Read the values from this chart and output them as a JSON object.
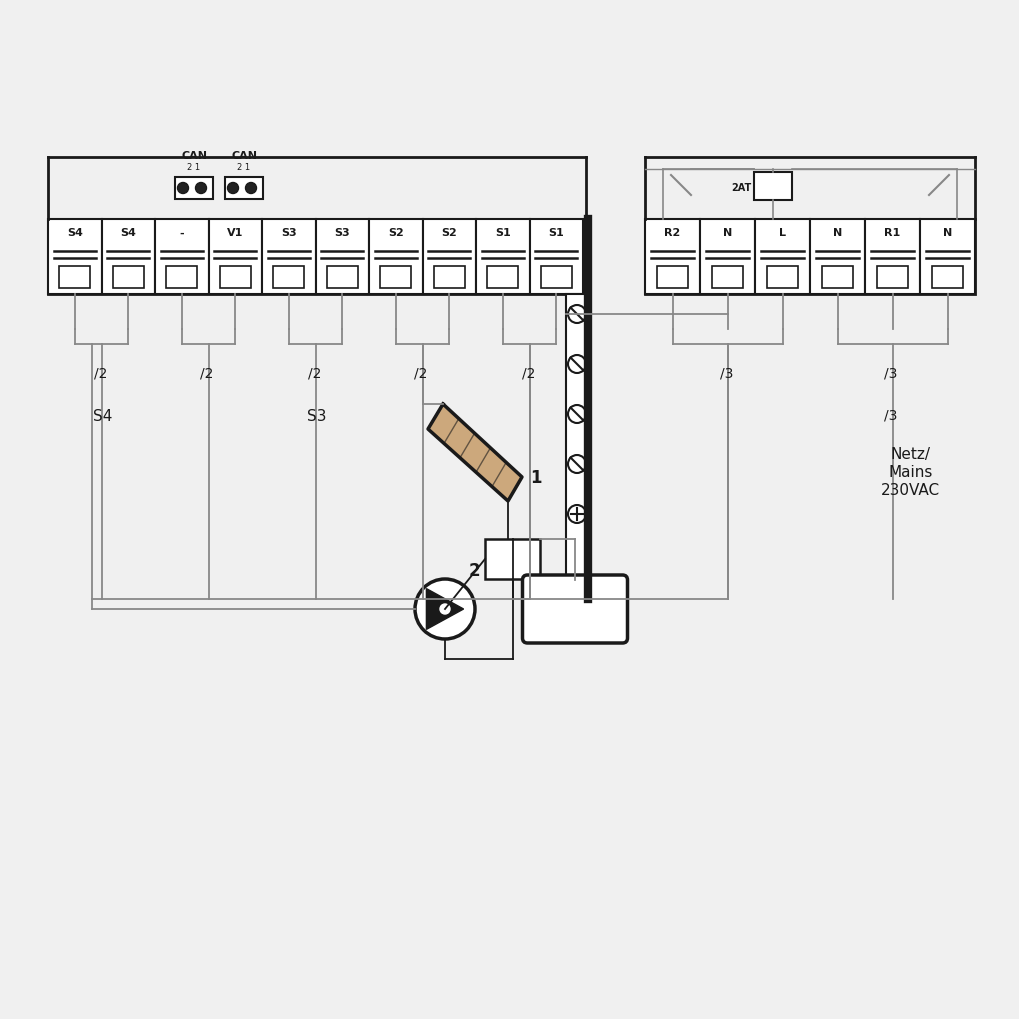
{
  "bg_color": "#f0f0f0",
  "line_color": "#1a1a1a",
  "gray_color": "#888888",
  "left_labels": [
    "S4",
    "S4",
    "-",
    "V1",
    "S3",
    "S3",
    "S2",
    "S2",
    "S1",
    "S1"
  ],
  "right_labels": [
    "R2",
    "N",
    "L",
    "N",
    "R1",
    "N"
  ],
  "fuse_label": "2AT",
  "label_1": "1",
  "label_2": "2",
  "sensor_s4": "S4",
  "sensor_s3": "S3",
  "mains_line1": "Netz/",
  "mains_line2": "Mains",
  "mains_line3": "230VAC",
  "div2": "/2",
  "div3": "/3",
  "can_text": "CAN",
  "can_sub": "2 1"
}
